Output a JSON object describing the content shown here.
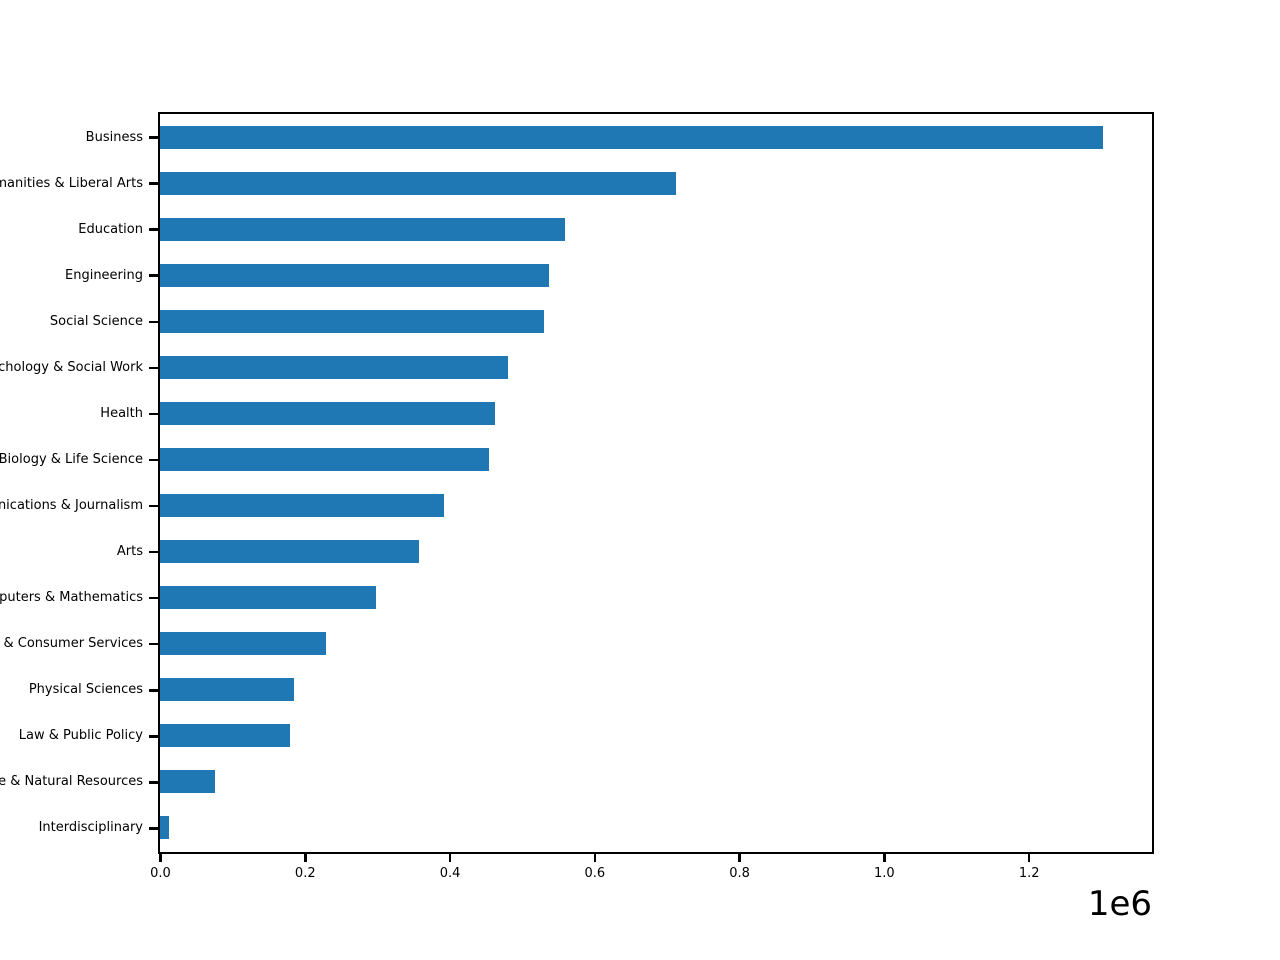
{
  "chart_data": {
    "type": "bar",
    "orientation": "horizontal",
    "title": "",
    "xlabel": "",
    "ylabel": "",
    "categories": [
      "Business",
      "Humanities & Liberal Arts",
      "Education",
      "Engineering",
      "Social Science",
      "Psychology & Social Work",
      "Health",
      "Biology & Life Science",
      "Communications & Journalism",
      "Arts",
      "Computers & Mathematics",
      "Industrial Arts & Consumer Services",
      "Physical Sciences",
      "Law & Public Policy",
      "Agriculture & Natural Resources",
      "Interdisciplinary"
    ],
    "values": [
      1302376,
      713468,
      559129,
      537583,
      529966,
      481007,
      463230,
      453862,
      392601,
      357130,
      299008,
      229792,
      185479,
      179107,
      75620,
      12296
    ],
    "xlim": [
      0,
      1369000
    ],
    "x_ticks": [
      0,
      200000,
      400000,
      600000,
      800000,
      1000000,
      1200000
    ],
    "x_tick_labels": [
      "0.0",
      "0.2",
      "0.4",
      "0.6",
      "0.8",
      "1.0",
      "1.2"
    ],
    "offset_label": "1e6",
    "bar_color": "#1f77b4",
    "axis_color": "#000000",
    "grid": false,
    "legend": false
  }
}
